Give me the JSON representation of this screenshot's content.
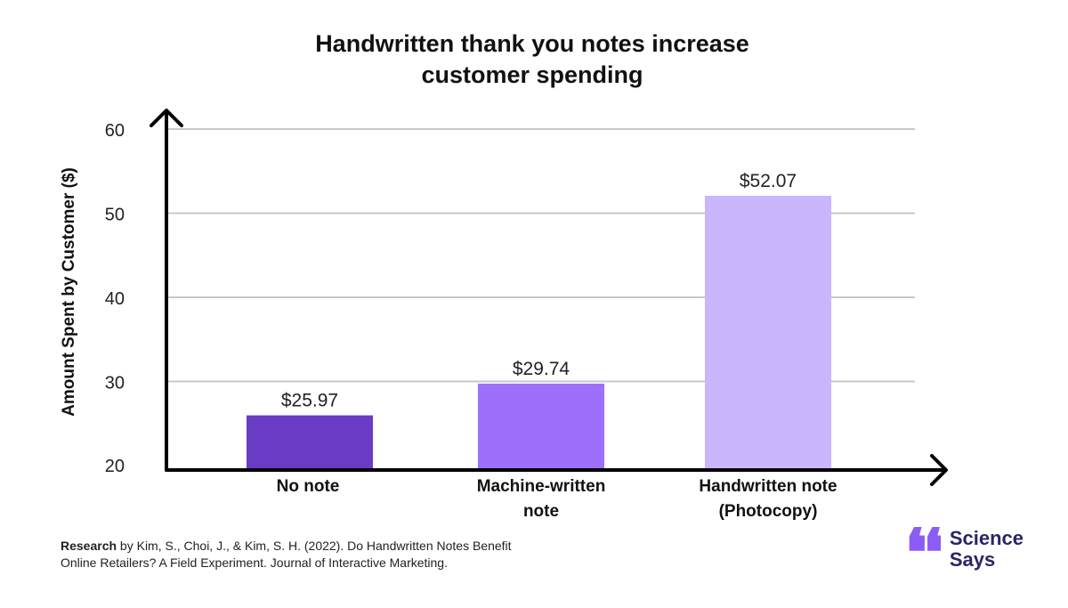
{
  "chart_data": {
    "type": "bar",
    "title": [
      "Handwritten thank you notes increase",
      "customer spending"
    ],
    "ylabel": "Amount Spent by Customer ($)",
    "ylim": [
      20,
      60
    ],
    "yticks": [
      "20",
      "30",
      "40",
      "50",
      "60"
    ],
    "grid": true,
    "categories": [
      [
        "No note"
      ],
      [
        "Machine-written",
        "note"
      ],
      [
        "Handwritten note",
        "(Photocopy)"
      ]
    ],
    "values": [
      25.97,
      29.74,
      52.07
    ],
    "value_labels": [
      "$25.97",
      "$29.74",
      "$52.07"
    ],
    "colors": [
      "#6a3cc4",
      "#9d6ffb",
      "#c9b6fd"
    ]
  },
  "footer": {
    "research_label": "Research",
    "line1": " by Kim, S., Choi, J., & Kim, S. H. (2022). Do Handwritten Notes Benefit",
    "line2": "Online Retailers? A Field Experiment. Journal of Interactive Marketing."
  },
  "brand": {
    "mark": "❛❛",
    "line1": "Science",
    "line2": "Says"
  }
}
